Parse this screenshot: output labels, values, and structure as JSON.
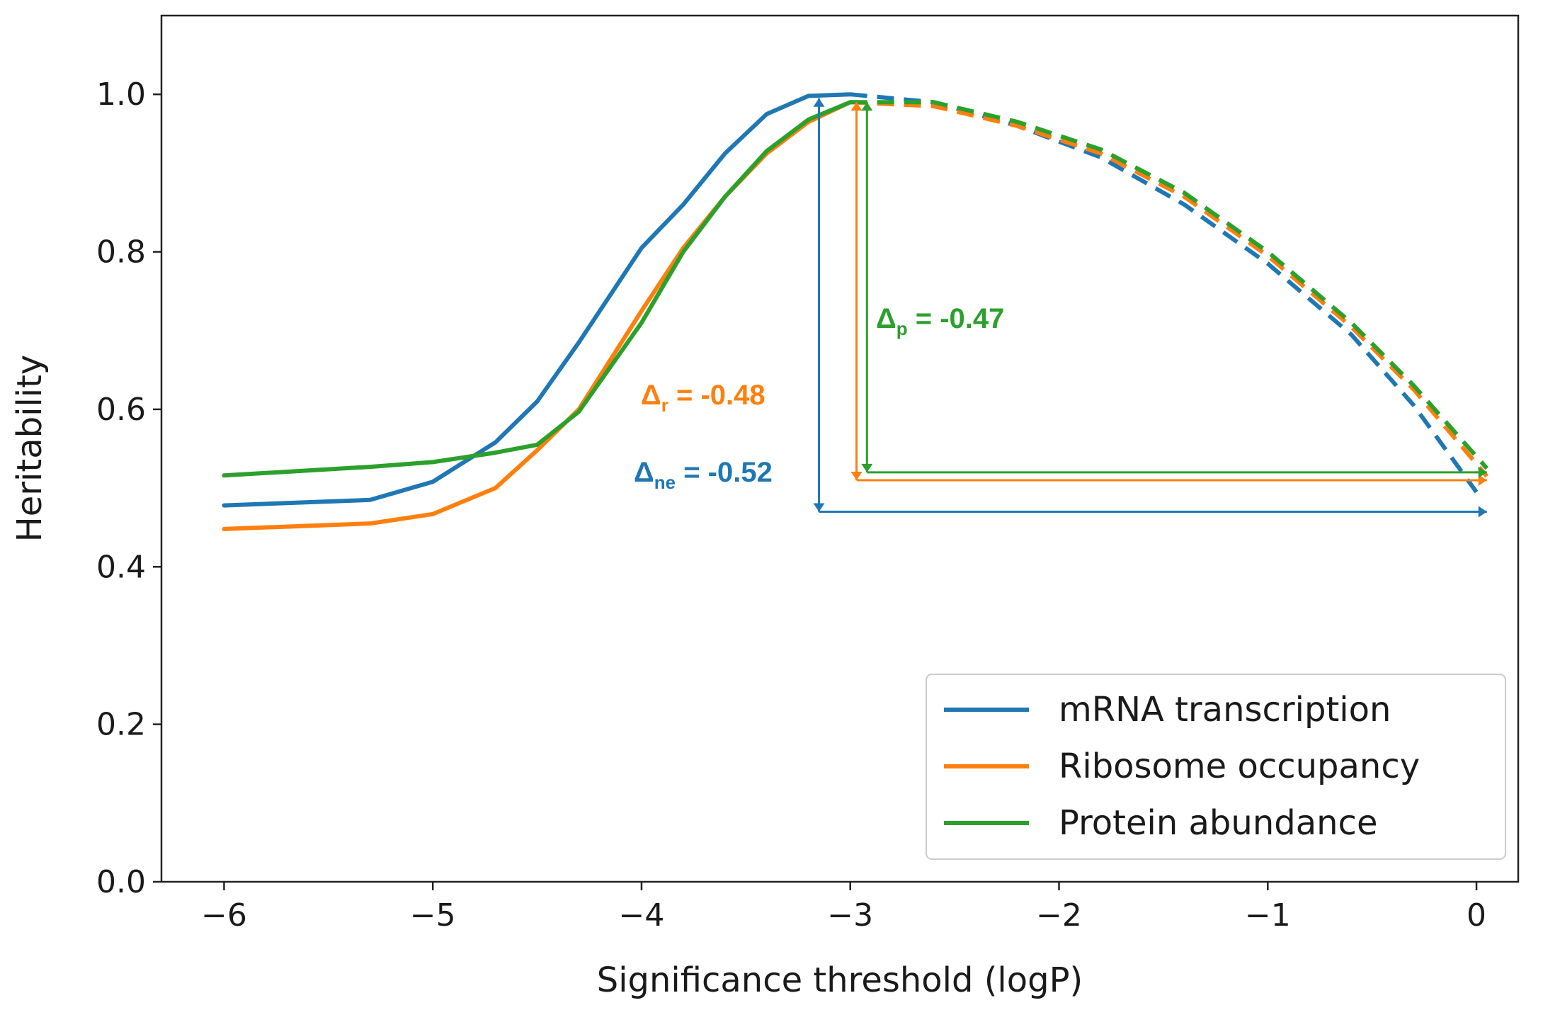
{
  "chart_data": {
    "type": "line",
    "xlabel": "Significance threshold (logP)",
    "ylabel": "Heritability",
    "xlim": [
      -6.3,
      0.2
    ],
    "ylim": [
      0.0,
      1.1
    ],
    "xticks": [
      -6,
      -5,
      -4,
      -3,
      -2,
      -1,
      0
    ],
    "xtick_labels": [
      "−6",
      "−5",
      "−4",
      "−3",
      "−2",
      "−1",
      "0"
    ],
    "yticks": [
      0.0,
      0.2,
      0.4,
      0.6,
      0.8,
      1.0
    ],
    "ytick_labels": [
      "0.0",
      "0.2",
      "0.4",
      "0.6",
      "0.8",
      "1.0"
    ],
    "grid": false,
    "legend_position": "lower-right",
    "series": [
      {
        "name": "mRNA transcription",
        "color": "#1f77b4",
        "solid": {
          "x": [
            -6.0,
            -5.3,
            -5.0,
            -4.7,
            -4.5,
            -4.3,
            -4.0,
            -3.8,
            -3.6,
            -3.4,
            -3.2,
            -3.0
          ],
          "y": [
            0.478,
            0.485,
            0.508,
            0.558,
            0.61,
            0.685,
            0.805,
            0.86,
            0.925,
            0.975,
            0.998,
            1.0
          ]
        },
        "dashed": {
          "x": [
            -3.0,
            -2.6,
            -2.2,
            -1.8,
            -1.4,
            -1.0,
            -0.6,
            -0.3,
            0.0
          ],
          "y": [
            1.0,
            0.99,
            0.96,
            0.92,
            0.86,
            0.785,
            0.695,
            0.605,
            0.495
          ]
        }
      },
      {
        "name": "Ribosome occupancy",
        "color": "#ff7f0e",
        "solid": {
          "x": [
            -6.0,
            -5.3,
            -5.0,
            -4.7,
            -4.5,
            -4.3,
            -4.0,
            -3.8,
            -3.6,
            -3.4,
            -3.2,
            -3.0
          ],
          "y": [
            0.448,
            0.455,
            0.467,
            0.5,
            0.548,
            0.6,
            0.725,
            0.805,
            0.87,
            0.925,
            0.965,
            0.99
          ]
        },
        "dashed": {
          "x": [
            -3.0,
            -2.6,
            -2.2,
            -1.8,
            -1.4,
            -1.0,
            -0.6,
            -0.3,
            0.05
          ],
          "y": [
            0.99,
            0.985,
            0.96,
            0.925,
            0.87,
            0.795,
            0.705,
            0.625,
            0.515
          ]
        }
      },
      {
        "name": "Protein abundance",
        "color": "#2ca02c",
        "solid": {
          "x": [
            -6.0,
            -5.3,
            -5.0,
            -4.7,
            -4.5,
            -4.3,
            -4.0,
            -3.8,
            -3.6,
            -3.4,
            -3.2,
            -3.0
          ],
          "y": [
            0.516,
            0.527,
            0.533,
            0.545,
            0.555,
            0.597,
            0.71,
            0.8,
            0.87,
            0.928,
            0.968,
            0.99
          ]
        },
        "dashed": {
          "x": [
            -3.0,
            -2.6,
            -2.2,
            -1.8,
            -1.4,
            -1.0,
            -0.6,
            -0.3,
            0.05
          ],
          "y": [
            0.99,
            0.99,
            0.965,
            0.93,
            0.875,
            0.8,
            0.71,
            0.63,
            0.525
          ]
        }
      }
    ],
    "annotations": [
      {
        "symbol": "Δ",
        "subscript": "ne",
        "value": "= -0.52",
        "color": "#1f77b4",
        "x": -3.15,
        "y_top": 0.995,
        "y_bottom": 0.47,
        "x_end": 0.05
      },
      {
        "symbol": "Δ",
        "subscript": "r",
        "value": "= -0.48",
        "color": "#ff7f0e",
        "x": -2.97,
        "y_top": 0.99,
        "y_bottom": 0.51,
        "x_end": 0.05
      },
      {
        "symbol": "Δ",
        "subscript": "p",
        "value": "= -0.47",
        "color": "#2ca02c",
        "x": -2.92,
        "y_top": 0.99,
        "y_bottom": 0.52,
        "x_end": 0.05
      }
    ]
  }
}
